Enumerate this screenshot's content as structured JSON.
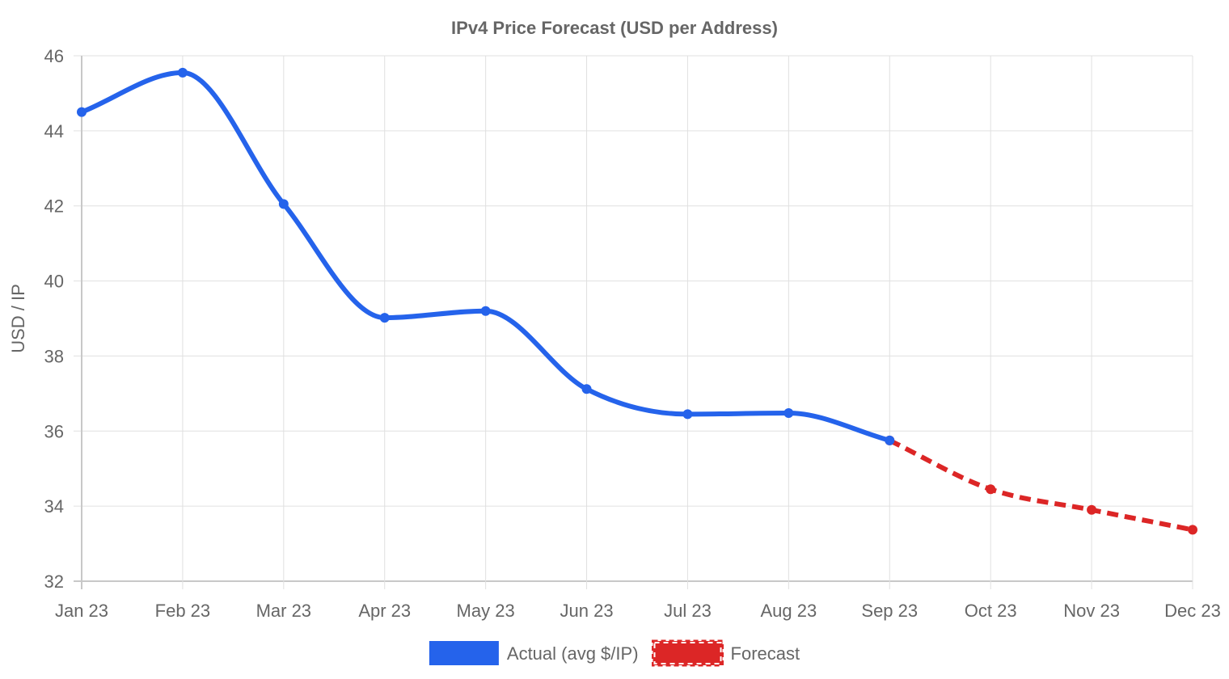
{
  "chart_data": {
    "type": "line",
    "title": "IPv4 Price Forecast (USD per Address)",
    "xlabel": "",
    "ylabel": "USD / IP",
    "categories": [
      "Jan 23",
      "Feb 23",
      "Mar 23",
      "Apr 23",
      "May 23",
      "Jun 23",
      "Jul 23",
      "Aug 23",
      "Sep 23",
      "Oct 23",
      "Nov 23",
      "Dec 23"
    ],
    "ylim": [
      32,
      46
    ],
    "yticks": [
      "32",
      "34",
      "36",
      "38",
      "40",
      "42",
      "44",
      "46"
    ],
    "grid": true,
    "legend_position": "bottom",
    "series": [
      {
        "name": "Actual (avg $/IP)",
        "color": "#2563eb",
        "style": "solid",
        "values": [
          44.5,
          45.55,
          42.05,
          39.02,
          39.2,
          37.12,
          36.45,
          36.48,
          35.75,
          null,
          null,
          null
        ]
      },
      {
        "name": "Forecast",
        "color": "#dc2626",
        "style": "dashed",
        "values": [
          null,
          null,
          null,
          null,
          null,
          null,
          null,
          null,
          35.75,
          34.45,
          33.9,
          33.37
        ]
      }
    ]
  }
}
